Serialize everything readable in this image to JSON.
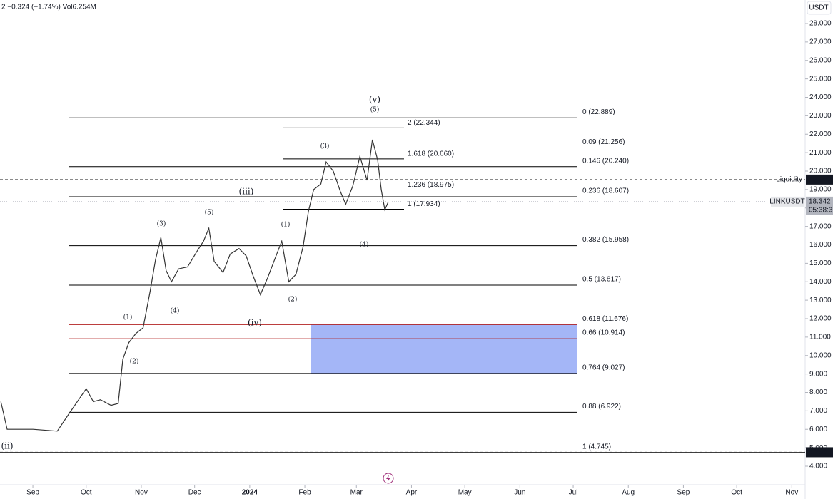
{
  "header": "2 −0.324 (−1.74%) Vol6.254M",
  "currency": "USDT",
  "chart_data": {
    "type": "line",
    "x": [
      -18,
      -14.5,
      0,
      13.7,
      20,
      25.7,
      30,
      34,
      38,
      44,
      48,
      50.6,
      54,
      58,
      62,
      66,
      69,
      72,
      75,
      78,
      82,
      87,
      92,
      96,
      99,
      102,
      107,
      111,
      116,
      120,
      124,
      128,
      132,
      136,
      140,
      144,
      148,
      152,
      155,
      158,
      162,
      165,
      169,
      173,
      176,
      180,
      184,
      188,
      191,
      194,
      196,
      198,
      200
    ],
    "series": [
      {
        "name": "LINKUSDT",
        "color": "#333333",
        "values": [
          7.5,
          6.0,
          6.0,
          5.9,
          6.8,
          7.6,
          8.2,
          7.5,
          7.6,
          7.3,
          7.4,
          9.8,
          10.7,
          11.2,
          11.5,
          13.5,
          15.2,
          16.4,
          14.6,
          14.0,
          14.7,
          14.8,
          15.6,
          16.2,
          16.9,
          15.1,
          14.5,
          15.5,
          15.8,
          15.4,
          14.3,
          13.3,
          14.2,
          15.2,
          16.2,
          14.0,
          14.4,
          15.9,
          17.8,
          19.0,
          19.3,
          20.5,
          20.0,
          18.9,
          18.2,
          19.2,
          20.8,
          19.5,
          21.7,
          20.6,
          19.0,
          17.9,
          18.342
        ]
      }
    ],
    "xlim": [
      -18.5,
      434.5
    ],
    "xticks": [
      {
        "value": 0,
        "label": "Sep"
      },
      {
        "value": 30,
        "label": "Oct"
      },
      {
        "value": 61,
        "label": "Nov"
      },
      {
        "value": 91,
        "label": "Dec"
      },
      {
        "value": 122,
        "label": "2024"
      },
      {
        "value": 153,
        "label": "Feb"
      },
      {
        "value": 182,
        "label": "Mar"
      },
      {
        "value": 213,
        "label": "Apr"
      },
      {
        "value": 243,
        "label": "May"
      },
      {
        "value": 274,
        "label": "Jun"
      },
      {
        "value": 304,
        "label": "Jul"
      },
      {
        "value": 335,
        "label": "Aug"
      },
      {
        "value": 366,
        "label": "Sep"
      },
      {
        "value": 396,
        "label": "Oct"
      },
      {
        "value": 427,
        "label": "Nov"
      }
    ],
    "ylim": [
      2.995,
      29.275
    ],
    "yticks": [
      {
        "value": 4,
        "label": "4.000"
      },
      {
        "value": 5,
        "label": "5.000"
      },
      {
        "value": 6,
        "label": "6.000"
      },
      {
        "value": 7,
        "label": "7.000"
      },
      {
        "value": 8,
        "label": "8.000"
      },
      {
        "value": 9,
        "label": "9.000"
      },
      {
        "value": 10,
        "label": "10.000"
      },
      {
        "value": 11,
        "label": "11.000"
      },
      {
        "value": 12,
        "label": "12.000"
      },
      {
        "value": 13,
        "label": "13.000"
      },
      {
        "value": 14,
        "label": "14.000"
      },
      {
        "value": 15,
        "label": "15.000"
      },
      {
        "value": 16,
        "label": "16.000"
      },
      {
        "value": 17,
        "label": "17.000"
      },
      {
        "value": 18,
        "label": "18.000"
      },
      {
        "value": 19,
        "label": "19.000"
      },
      {
        "value": 20,
        "label": "20.000"
      },
      {
        "value": 21,
        "label": "21.000"
      },
      {
        "value": 22,
        "label": "22.000"
      },
      {
        "value": 23,
        "label": "23.000"
      },
      {
        "value": 24,
        "label": "24.000"
      },
      {
        "value": 25,
        "label": "25.000"
      },
      {
        "value": 26,
        "label": "26.000"
      },
      {
        "value": 27,
        "label": "27.000"
      },
      {
        "value": 28,
        "label": "28.000"
      }
    ]
  },
  "fib_levels": [
    {
      "label": "0 (22.889)",
      "value": 22.889,
      "color": "#000000"
    },
    {
      "label": "0.09 (21.256)",
      "value": 21.256,
      "color": "#000000"
    },
    {
      "label": "0.146 (20.240)",
      "value": 20.24,
      "color": "#000000"
    },
    {
      "label": "0.236 (18.607)",
      "value": 18.607,
      "color": "#000000"
    },
    {
      "label": "0.382 (15.958)",
      "value": 15.958,
      "color": "#000000"
    },
    {
      "label": "0.5 (13.817)",
      "value": 13.817,
      "color": "#000000"
    },
    {
      "label": "0.618 (11.676)",
      "value": 11.676,
      "color": "#b22222"
    },
    {
      "label": "0.66 (10.914)",
      "value": 10.914,
      "color": "#b22222"
    },
    {
      "label": "0.764 (9.027)",
      "value": 9.027,
      "color": "#000000"
    },
    {
      "label": "0.88 (6.922)",
      "value": 6.922,
      "color": "#000000"
    },
    {
      "label": "1 (4.745)",
      "value": 4.745,
      "color": "#000000"
    }
  ],
  "extension_levels": [
    {
      "label": "2 (22.344)",
      "value": 22.344
    },
    {
      "label": "1.618 (20.660)",
      "value": 20.66
    },
    {
      "label": "1.236 (18.975)",
      "value": 18.975
    },
    {
      "label": "1 (17.934)",
      "value": 17.934
    }
  ],
  "markers": [
    {
      "name": "Liquidity",
      "value": 19.54,
      "value_label": "19.540"
    },
    {
      "value": 4.756
    }
  ],
  "last_price": 18.342,
  "countdown": "05:38:3",
  "wave_labels": [
    "(v)",
    "(5)",
    "(3)",
    "(iii)",
    "(1)",
    "(4)",
    "(5)",
    "(3)",
    "(4)",
    "(2)",
    "(1)",
    "(iv)",
    "(2)",
    "(ii)"
  ]
}
